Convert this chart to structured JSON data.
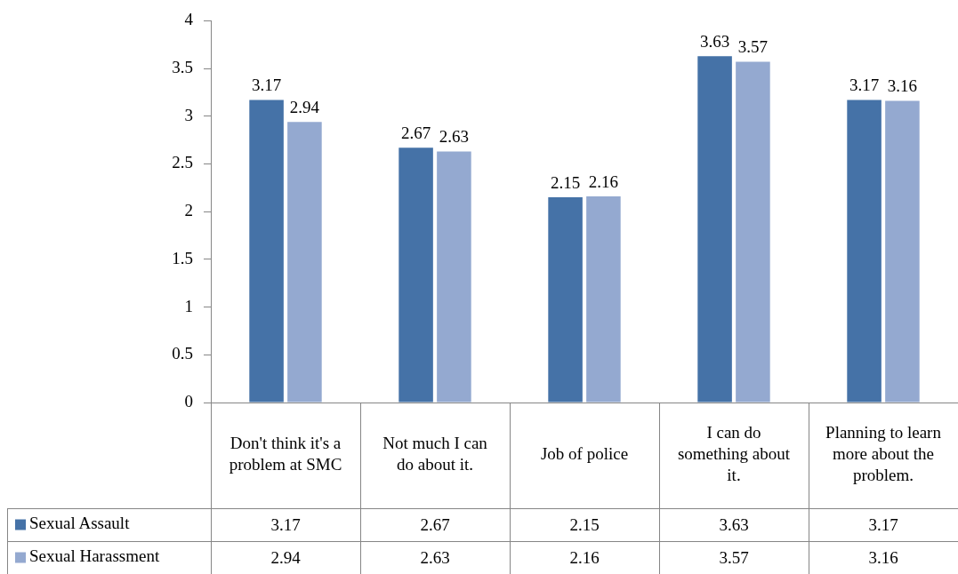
{
  "chart_data": {
    "type": "bar",
    "categories": [
      "Don't think it's a problem at SMC",
      "Not much I can do about it.",
      "Job of police",
      "I can do something about it.",
      "Planning to learn more about the problem."
    ],
    "series": [
      {
        "name": "Sexual Assault",
        "color": "#4572a7",
        "values": [
          3.17,
          2.67,
          2.15,
          3.63,
          3.17
        ]
      },
      {
        "name": "Sexual Harassment",
        "color": "#94a9d0",
        "values": [
          2.94,
          2.63,
          2.16,
          3.57,
          3.16
        ]
      }
    ],
    "annotations": [
      "3.17",
      "2.67",
      "2.15",
      "3.63",
      "3.17",
      "2.94",
      "2.63",
      "2.16",
      "3.57",
      "3.16"
    ],
    "ylim": [
      0,
      4
    ],
    "yticks": [
      0,
      0.5,
      1,
      1.5,
      2,
      2.5,
      3,
      3.5,
      4
    ],
    "grid": false,
    "legend": "bottom",
    "data_labels": true
  }
}
